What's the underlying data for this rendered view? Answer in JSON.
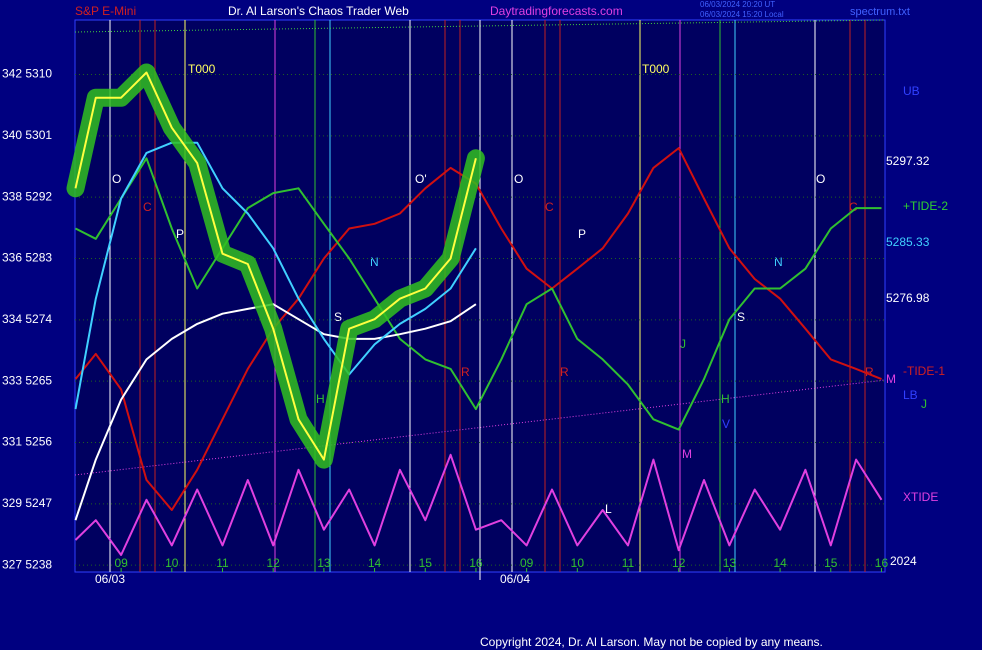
{
  "chart_data": {
    "type": "line",
    "title": "Dr. Al Larson's Chaos Trader Web",
    "header_left": "S&P E-Mini",
    "header_site": "Daytradingforecasts.com",
    "header_times": [
      "06/03/2024 20:20 UT",
      "06/03/2024 15:20 Local"
    ],
    "header_right": "spectrum.txt",
    "dates": [
      "06/03",
      "06/04"
    ],
    "copyright": "Copyright 2024, Dr. Al Larson. May not be copied by any means.",
    "x": [
      -0.9,
      -0.5,
      0,
      0.5,
      1,
      1.5,
      2,
      2.5,
      3,
      3.5,
      4,
      4.5,
      5,
      5.5,
      6,
      6.5,
      7,
      7.5,
      8,
      8.5,
      9,
      9.5,
      10,
      10.5,
      11,
      11.5,
      12,
      12.5,
      13,
      13.5,
      14,
      14.5,
      15
    ],
    "xlim": [
      -0.91,
      15.07
    ],
    "xticks": [
      {
        "value": 0,
        "label": "09"
      },
      {
        "value": 1,
        "label": "10"
      },
      {
        "value": 2,
        "label": "11"
      },
      {
        "value": 3,
        "label": "12"
      },
      {
        "value": 4,
        "label": "13"
      },
      {
        "value": 5,
        "label": "14"
      },
      {
        "value": 6,
        "label": "15"
      },
      {
        "value": 7,
        "label": "16"
      },
      {
        "value": 8,
        "label": "09"
      },
      {
        "value": 9,
        "label": "10"
      },
      {
        "value": 10,
        "label": "11"
      },
      {
        "value": 11,
        "label": "12"
      },
      {
        "value": 12,
        "label": "13"
      },
      {
        "value": 13,
        "label": "14"
      },
      {
        "value": 14,
        "label": "15"
      },
      {
        "value": 15,
        "label": "16"
      }
    ],
    "ylim": [
      5237,
      5318
    ],
    "yticks": [
      {
        "value": 5310,
        "label": "342 5310"
      },
      {
        "value": 5301,
        "label": "340 5301"
      },
      {
        "value": 5292,
        "label": "338 5292"
      },
      {
        "value": 5283,
        "label": "336 5283"
      },
      {
        "value": 5274,
        "label": "334 5274"
      },
      {
        "value": 5265,
        "label": "333 5265"
      },
      {
        "value": 5256,
        "label": "331 5256"
      },
      {
        "value": 5247,
        "label": "329 5247"
      },
      {
        "value": 5238,
        "label": "327 5238"
      }
    ],
    "right_labels": [
      "UB",
      "5297.32",
      "+TIDE-2",
      "5285.33",
      "5276.98",
      "-TIDE-1",
      "M",
      "LB",
      "J",
      "XTIDE",
      "2024"
    ],
    "annotations": [
      "T000",
      "T000",
      "O",
      "C",
      "P",
      "N",
      "S",
      "R",
      "H",
      "O'",
      "O",
      "C",
      "P",
      "N",
      "S",
      "R",
      "H",
      "J",
      "M",
      "O",
      "C",
      "R",
      "L",
      "V"
    ],
    "series": [
      {
        "name": "XTIDE",
        "color": "#e040e0",
        "values": [
          5241.7,
          5244.6,
          5239.5,
          5247.6,
          5240.9,
          5249.1,
          5240.9,
          5250.5,
          5240.9,
          5252.0,
          5243.2,
          5249.1,
          5240.9,
          5252.0,
          5244.6,
          5254.2,
          5243.2,
          5244.6,
          5240.9,
          5249.1,
          5240.9,
          5246.1,
          5240.9,
          5253.5,
          5240.2,
          5250.5,
          5240.9,
          5249.1,
          5243.2,
          5252.0,
          5240.9,
          5253.5,
          5247.6
        ]
      },
      {
        "name": "-TIDE-1",
        "color": "#d01010",
        "values": [
          5265.3,
          5269.0,
          5263.8,
          5250.5,
          5246.1,
          5252.0,
          5259.4,
          5266.8,
          5272.7,
          5277.1,
          5283.0,
          5287.4,
          5288.1,
          5289.6,
          5293.3,
          5296.3,
          5294.0,
          5287.4,
          5281.5,
          5278.6,
          5281.5,
          5284.5,
          5289.6,
          5296.3,
          5299.2,
          5291.8,
          5284.5,
          5280.0,
          5277.1,
          5272.7,
          5268.2,
          5266.8,
          5265.3
        ]
      },
      {
        "name": "+TIDE-2",
        "color": "#30c030",
        "values": [
          5287.4,
          5285.9,
          5291.8,
          5297.7,
          5287.4,
          5278.6,
          5284.5,
          5290.4,
          5292.6,
          5293.3,
          5288.1,
          5283.0,
          5277.1,
          5271.2,
          5268.2,
          5266.8,
          5260.9,
          5268.2,
          5276.3,
          5278.6,
          5271.2,
          5268.2,
          5264.5,
          5259.4,
          5257.9,
          5265.3,
          5274.1,
          5278.6,
          5278.6,
          5281.5,
          5287.4,
          5290.4,
          5290.4
        ]
      },
      {
        "name": "5276.98",
        "color": "#ffffff",
        "values": [
          5244.6,
          5253.5,
          5262.3,
          5268.2,
          5271.2,
          5273.4,
          5274.9,
          5275.6,
          5276.3,
          5274.1,
          5271.9,
          5271.2,
          5271.2,
          5271.9,
          5272.7,
          5273.8,
          5276.3,
          null,
          null,
          null,
          null,
          null,
          null,
          null,
          null,
          null,
          null,
          null,
          null,
          null,
          null,
          null,
          null
        ]
      },
      {
        "name": "5285.33",
        "color": "#40d0ff",
        "values": [
          5260.9,
          5277.1,
          5291.8,
          5298.5,
          5300.0,
          5300.0,
          5293.3,
          5289.6,
          5284.5,
          5277.1,
          5271.2,
          5266.0,
          5270.4,
          5273.4,
          5275.6,
          5278.6,
          5284.5,
          null,
          null,
          null,
          null,
          null,
          null,
          null,
          null,
          null,
          null,
          null,
          null,
          null,
          null,
          null,
          null
        ]
      },
      {
        "name": "5297.32",
        "color": "#ffff40",
        "values": [
          5293.3,
          5306.6,
          5306.6,
          5310.3,
          5302.2,
          5297.0,
          5283.7,
          5282.2,
          5272.7,
          5259.4,
          5253.5,
          5272.7,
          5274.1,
          5277.1,
          5278.6,
          5283.0,
          5297.7,
          null,
          null,
          null,
          null,
          null,
          null,
          null,
          null,
          null,
          null,
          null,
          null,
          null,
          null,
          null,
          null
        ]
      }
    ]
  }
}
